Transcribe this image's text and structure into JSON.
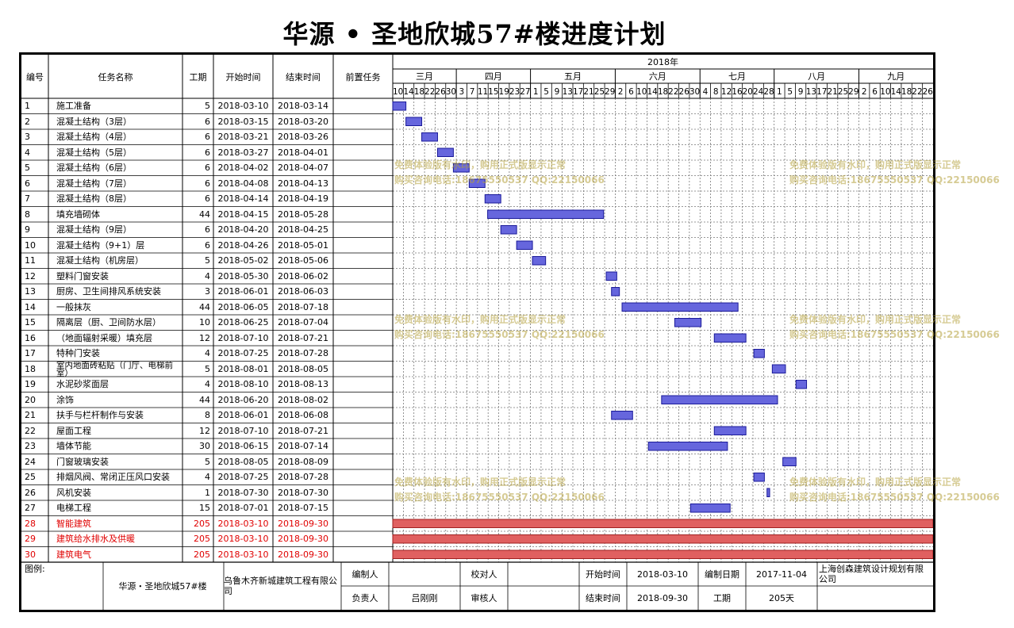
{
  "title": "华源 • 圣地欣城57#楼进度计划",
  "headers": {
    "id": "编号",
    "name": "任务名称",
    "duration": "工期",
    "start": "开始时间",
    "end": "结束时间",
    "pred": "前置任务"
  },
  "chart_data": {
    "type": "gantt",
    "year_label": "2018年",
    "months": [
      {
        "label": "三月",
        "days": [
          "10",
          "14",
          "18",
          "22",
          "26",
          "30"
        ]
      },
      {
        "label": "四月",
        "days": [
          "3",
          "7",
          "11",
          "15",
          "19",
          "23",
          "27"
        ]
      },
      {
        "label": "五月",
        "days": [
          "1",
          "5",
          "9",
          "13",
          "17",
          "21",
          "25",
          "29"
        ]
      },
      {
        "label": "六月",
        "days": [
          "2",
          "6",
          "10",
          "14",
          "18",
          "22",
          "26",
          "30"
        ]
      },
      {
        "label": "七月",
        "days": [
          "4",
          "8",
          "12",
          "16",
          "20",
          "24",
          "28"
        ]
      },
      {
        "label": "八月",
        "days": [
          "1",
          "5",
          "9",
          "13",
          "17",
          "21",
          "25",
          "29"
        ]
      },
      {
        "label": "九月",
        "days": [
          "2",
          "6",
          "10",
          "14",
          "18",
          "22",
          "26"
        ]
      }
    ],
    "axis_start": "2018-03-10",
    "axis_end": "2018-09-30",
    "tasks": [
      {
        "id": "1",
        "name": "施工准备",
        "duration": "5",
        "start": "2018-03-10",
        "end": "2018-03-14"
      },
      {
        "id": "2",
        "name": "混凝土结构（3层）",
        "duration": "6",
        "start": "2018-03-15",
        "end": "2018-03-20"
      },
      {
        "id": "3",
        "name": "混凝土结构（4层）",
        "duration": "6",
        "start": "2018-03-21",
        "end": "2018-03-26"
      },
      {
        "id": "4",
        "name": "混凝土结构（5层）",
        "duration": "6",
        "start": "2018-03-27",
        "end": "2018-04-01"
      },
      {
        "id": "5",
        "name": "混凝土结构（6层）",
        "duration": "6",
        "start": "2018-04-02",
        "end": "2018-04-07"
      },
      {
        "id": "6",
        "name": "混凝土结构（7层）",
        "duration": "6",
        "start": "2018-04-08",
        "end": "2018-04-13"
      },
      {
        "id": "7",
        "name": "混凝土结构（8层）",
        "duration": "6",
        "start": "2018-04-14",
        "end": "2018-04-19"
      },
      {
        "id": "8",
        "name": "填充墙砌体",
        "duration": "44",
        "start": "2018-04-15",
        "end": "2018-05-28"
      },
      {
        "id": "9",
        "name": "混凝土结构（9层）",
        "duration": "6",
        "start": "2018-04-20",
        "end": "2018-04-25"
      },
      {
        "id": "10",
        "name": "混凝土结构（9+1）层",
        "duration": "6",
        "start": "2018-04-26",
        "end": "2018-05-01"
      },
      {
        "id": "11",
        "name": "混凝土结构（机房层）",
        "duration": "5",
        "start": "2018-05-02",
        "end": "2018-05-06"
      },
      {
        "id": "12",
        "name": "塑料门窗安装",
        "duration": "4",
        "start": "2018-05-30",
        "end": "2018-06-02"
      },
      {
        "id": "13",
        "name": "厨房、卫生间排风系统安装",
        "duration": "3",
        "start": "2018-06-01",
        "end": "2018-06-03"
      },
      {
        "id": "14",
        "name": "一般抹灰",
        "duration": "44",
        "start": "2018-06-05",
        "end": "2018-07-18"
      },
      {
        "id": "15",
        "name": "隔离层（厨、卫间防水层）",
        "duration": "10",
        "start": "2018-06-25",
        "end": "2018-07-04"
      },
      {
        "id": "16",
        "name": "（地面辐射采暖）填充层",
        "duration": "12",
        "start": "2018-07-10",
        "end": "2018-07-21"
      },
      {
        "id": "17",
        "name": "特种门安装",
        "duration": "4",
        "start": "2018-07-25",
        "end": "2018-07-28"
      },
      {
        "id": "18",
        "name": "室内地面砖粘贴（门厅、电梯前室）",
        "duration": "5",
        "start": "2018-08-01",
        "end": "2018-08-05"
      },
      {
        "id": "19",
        "name": "水泥砂浆面层",
        "duration": "4",
        "start": "2018-08-10",
        "end": "2018-08-13"
      },
      {
        "id": "20",
        "name": "涂饰",
        "duration": "44",
        "start": "2018-06-20",
        "end": "2018-08-02"
      },
      {
        "id": "21",
        "name": "扶手与栏杆制作与安装",
        "duration": "8",
        "start": "2018-06-01",
        "end": "2018-06-08"
      },
      {
        "id": "22",
        "name": "屋面工程",
        "duration": "12",
        "start": "2018-07-10",
        "end": "2018-07-21"
      },
      {
        "id": "23",
        "name": "墙体节能",
        "duration": "30",
        "start": "2018-06-15",
        "end": "2018-07-14"
      },
      {
        "id": "24",
        "name": "门窗玻璃安装",
        "duration": "5",
        "start": "2018-08-05",
        "end": "2018-08-09"
      },
      {
        "id": "25",
        "name": "排烟风阀、常闭正压风口安装",
        "duration": "4",
        "start": "2018-07-25",
        "end": "2018-07-28"
      },
      {
        "id": "26",
        "name": "风机安装",
        "duration": "1",
        "start": "2018-07-30",
        "end": "2018-07-30"
      },
      {
        "id": "27",
        "name": "电梯工程",
        "duration": "15",
        "start": "2018-07-01",
        "end": "2018-07-15"
      },
      {
        "id": "28",
        "name": "智能建筑",
        "duration": "205",
        "start": "2018-03-10",
        "end": "2018-09-30",
        "critical": true
      },
      {
        "id": "29",
        "name": "建筑给水排水及供暖",
        "duration": "205",
        "start": "2018-03-10",
        "end": "2018-09-30",
        "critical": true
      },
      {
        "id": "30",
        "name": "建筑电气",
        "duration": "205",
        "start": "2018-03-10",
        "end": "2018-09-30",
        "critical": true
      }
    ],
    "colors": {
      "bar_fill": "#6666dd",
      "bar_stroke": "#1a1a99",
      "critical_fill": "#e06060",
      "critical_text": "#e00000"
    }
  },
  "watermark": {
    "line1": "免费体验版有水印，购用正式版显示正常",
    "line2": "购买咨询电话:18675550537 QQ:22150066"
  },
  "footer": {
    "legend_label": "图例:",
    "project": "华源・圣地欣城57#楼",
    "company": "乌鲁木齐新城建筑工程有限公司",
    "compiler_label": "编制人",
    "compiler": "",
    "reviewer_label": "校对人",
    "reviewer": "",
    "start_label": "开始时间",
    "start": "2018-03-10",
    "compile_date_label": "编制日期",
    "compile_date": "2017-11-04",
    "designer": "上海创森建筑设计规划有限公司",
    "manager_label": "负责人",
    "manager": "吕刚刚",
    "auditor_label": "审核人",
    "auditor": "",
    "end_label": "结束时间",
    "end": "2018-09-30",
    "duration_label": "工期",
    "duration": "205天"
  }
}
